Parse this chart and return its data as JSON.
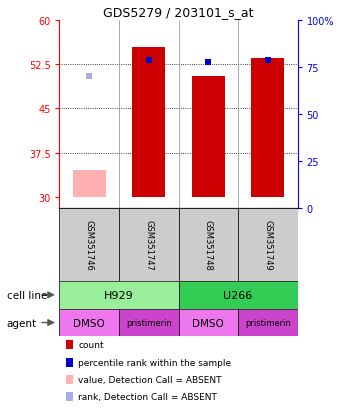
{
  "title": "GDS5279 / 203101_s_at",
  "samples": [
    "GSM351746",
    "GSM351747",
    "GSM351748",
    "GSM351749"
  ],
  "bar_values": [
    34.5,
    55.5,
    50.5,
    53.5
  ],
  "bar_colors": [
    "#ffb0b0",
    "#cc0000",
    "#cc0000",
    "#cc0000"
  ],
  "bar_absent": [
    true,
    false,
    false,
    false
  ],
  "rank_values": [
    50.5,
    53.3,
    52.8,
    53.3
  ],
  "rank_absent": [
    true,
    false,
    false,
    false
  ],
  "rank_color_present": "#0000cc",
  "rank_color_absent": "#aaaaee",
  "ylim_left": [
    28,
    60
  ],
  "ylim_right": [
    0,
    100
  ],
  "yticks_left": [
    30,
    37.5,
    45,
    52.5,
    60
  ],
  "yticks_right": [
    0,
    25,
    50,
    75,
    100
  ],
  "ytick_labels_left": [
    "30",
    "37.5",
    "45",
    "52.5",
    "60"
  ],
  "ytick_labels_right": [
    "0",
    "25",
    "50",
    "75",
    "100%"
  ],
  "bar_bottom": 30,
  "grid_yticks": [
    37.5,
    45,
    52.5
  ],
  "cell_groups": [
    {
      "start": 0,
      "end": 2,
      "label": "H929",
      "color": "#99ee99"
    },
    {
      "start": 2,
      "end": 4,
      "label": "U266",
      "color": "#33cc55"
    }
  ],
  "agent_labels": [
    "DMSO",
    "pristimerin",
    "DMSO",
    "pristimerin"
  ],
  "agent_colors": [
    "#ee77ee",
    "#cc44cc",
    "#ee77ee",
    "#cc44cc"
  ],
  "legend_items": [
    {
      "color": "#cc0000",
      "label": "count"
    },
    {
      "color": "#0000cc",
      "label": "percentile rank within the sample"
    },
    {
      "color": "#ffb0b0",
      "label": "value, Detection Call = ABSENT"
    },
    {
      "color": "#aaaaee",
      "label": "rank, Detection Call = ABSENT"
    }
  ]
}
